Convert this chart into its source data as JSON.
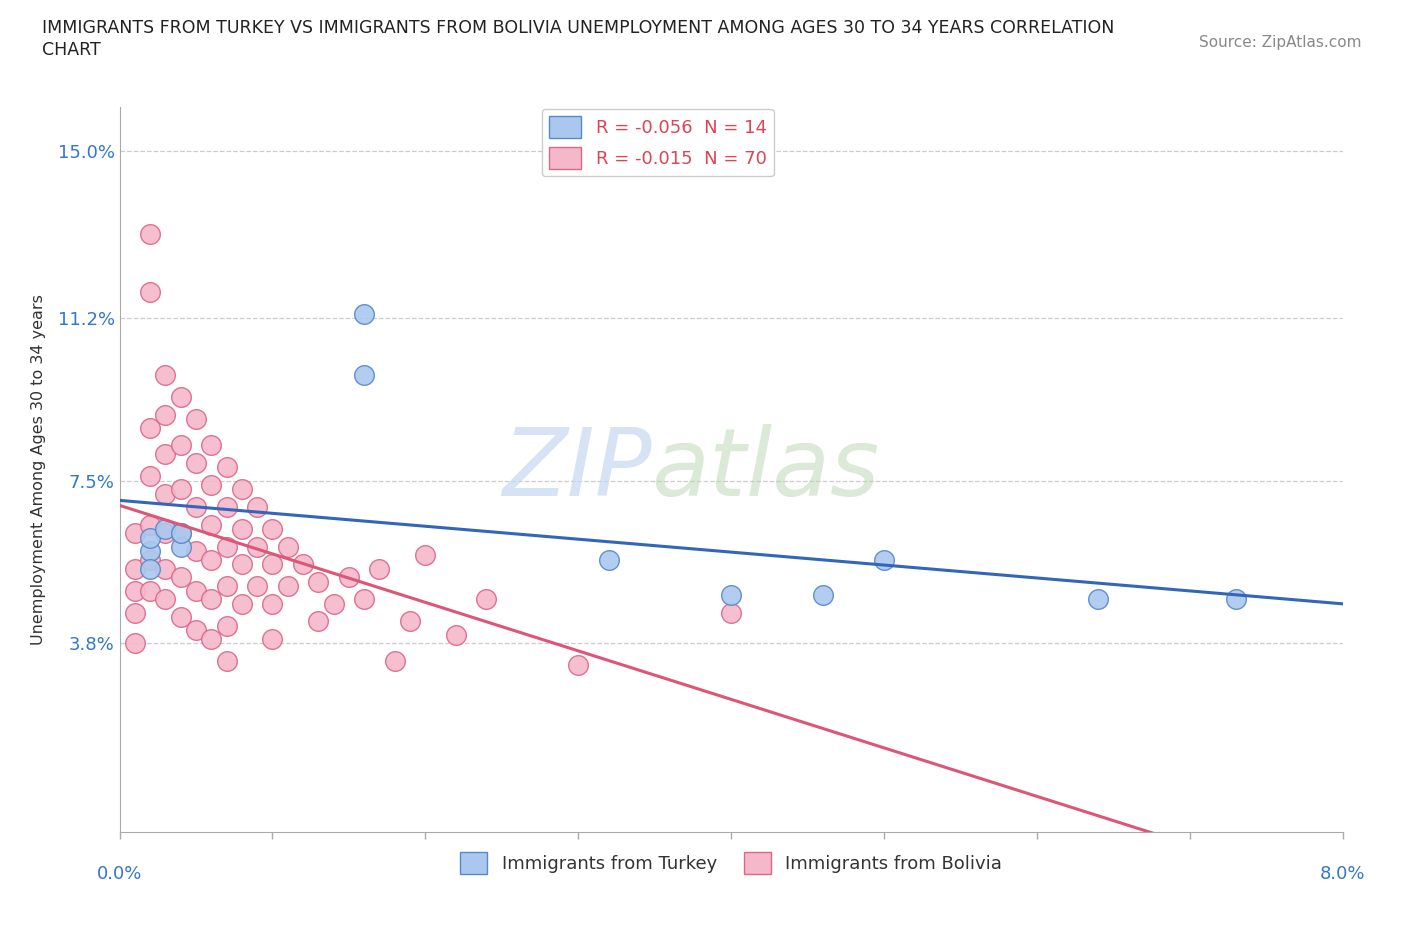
{
  "title_line1": "IMMIGRANTS FROM TURKEY VS IMMIGRANTS FROM BOLIVIA UNEMPLOYMENT AMONG AGES 30 TO 34 YEARS CORRELATION",
  "title_line2": "CHART",
  "source": "Source: ZipAtlas.com",
  "ylabel": "Unemployment Among Ages 30 to 34 years",
  "yticks": [
    0.0,
    0.038,
    0.075,
    0.112,
    0.15
  ],
  "ytick_labels": [
    "",
    "3.8%",
    "7.5%",
    "11.2%",
    "15.0%"
  ],
  "xtick_positions": [
    0.0,
    0.01,
    0.02,
    0.03,
    0.04,
    0.05,
    0.06,
    0.07,
    0.08
  ],
  "xlim": [
    0.0,
    0.08
  ],
  "ylim": [
    -0.005,
    0.16
  ],
  "watermark_zip": "ZIP",
  "watermark_atlas": "atlas",
  "turkey_color": "#aac8ee",
  "turkey_edge": "#5588cc",
  "bolivia_color": "#f5b8cb",
  "bolivia_edge": "#dd6688",
  "turkey_line_color": "#3366bb",
  "bolivia_line_color": "#dd5577",
  "turkey_R": -0.056,
  "turkey_N": 14,
  "bolivia_R": -0.015,
  "bolivia_N": 70,
  "legend_r_color": "#dd4455",
  "legend_n_color": "#3366bb",
  "turkey_x": [
    0.002,
    0.002,
    0.002,
    0.003,
    0.004,
    0.004,
    0.016,
    0.016,
    0.032,
    0.04,
    0.046,
    0.05,
    0.064,
    0.073
  ],
  "turkey_y": [
    0.059,
    0.055,
    0.062,
    0.064,
    0.06,
    0.063,
    0.113,
    0.099,
    0.057,
    0.049,
    0.049,
    0.057,
    0.048,
    0.048
  ],
  "bolivia_x": [
    0.001,
    0.001,
    0.001,
    0.001,
    0.001,
    0.002,
    0.002,
    0.002,
    0.002,
    0.002,
    0.002,
    0.002,
    0.003,
    0.003,
    0.003,
    0.003,
    0.003,
    0.003,
    0.003,
    0.004,
    0.004,
    0.004,
    0.004,
    0.004,
    0.004,
    0.005,
    0.005,
    0.005,
    0.005,
    0.005,
    0.005,
    0.006,
    0.006,
    0.006,
    0.006,
    0.006,
    0.006,
    0.007,
    0.007,
    0.007,
    0.007,
    0.007,
    0.007,
    0.008,
    0.008,
    0.008,
    0.008,
    0.009,
    0.009,
    0.009,
    0.01,
    0.01,
    0.01,
    0.01,
    0.011,
    0.011,
    0.012,
    0.013,
    0.013,
    0.014,
    0.015,
    0.016,
    0.017,
    0.018,
    0.019,
    0.02,
    0.022,
    0.024,
    0.03,
    0.04
  ],
  "bolivia_y": [
    0.063,
    0.055,
    0.05,
    0.045,
    0.038,
    0.131,
    0.118,
    0.087,
    0.076,
    0.065,
    0.057,
    0.05,
    0.099,
    0.09,
    0.081,
    0.072,
    0.063,
    0.055,
    0.048,
    0.094,
    0.083,
    0.073,
    0.063,
    0.053,
    0.044,
    0.089,
    0.079,
    0.069,
    0.059,
    0.05,
    0.041,
    0.083,
    0.074,
    0.065,
    0.057,
    0.048,
    0.039,
    0.078,
    0.069,
    0.06,
    0.051,
    0.042,
    0.034,
    0.073,
    0.064,
    0.056,
    0.047,
    0.069,
    0.06,
    0.051,
    0.064,
    0.056,
    0.047,
    0.039,
    0.06,
    0.051,
    0.056,
    0.052,
    0.043,
    0.047,
    0.053,
    0.048,
    0.055,
    0.034,
    0.043,
    0.058,
    0.04,
    0.048,
    0.033,
    0.045
  ]
}
